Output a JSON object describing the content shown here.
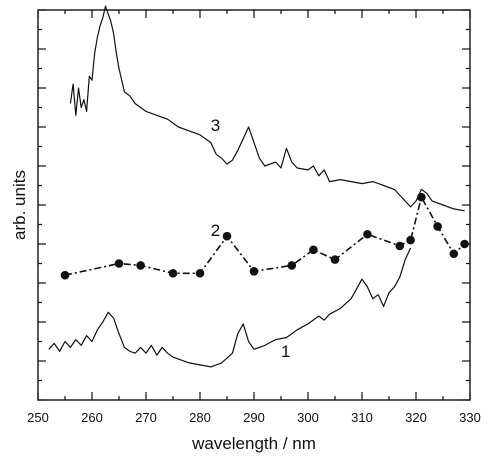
{
  "chart_data": {
    "type": "line",
    "xlabel": "wavelength / nm",
    "ylabel": "arb. units",
    "xlim": [
      250,
      330
    ],
    "ylim": [
      0,
      10
    ],
    "x_ticks": [
      250,
      260,
      270,
      280,
      290,
      300,
      310,
      320,
      330
    ],
    "y_ticks_major": [
      1,
      2,
      3,
      4,
      5,
      6,
      7,
      8,
      9
    ],
    "y_tick_labels_shown": false,
    "grid": false,
    "legend": "none",
    "series": [
      {
        "name": "1",
        "style": "line",
        "x": [
          252,
          253,
          254,
          255,
          256,
          257,
          258,
          259,
          260,
          261,
          262,
          263,
          264,
          265,
          266,
          267,
          268,
          269,
          270,
          271,
          272,
          273,
          274,
          275,
          276,
          278,
          280,
          282,
          284,
          286,
          287,
          288,
          289,
          290,
          292,
          294,
          296,
          298,
          300,
          302,
          303,
          304,
          306,
          308,
          310,
          311,
          312,
          313,
          314,
          315,
          316,
          317,
          318,
          319
        ],
        "y": [
          1.3,
          1.45,
          1.25,
          1.5,
          1.35,
          1.55,
          1.4,
          1.65,
          1.5,
          1.8,
          2.0,
          2.25,
          2.1,
          1.7,
          1.35,
          1.25,
          1.2,
          1.35,
          1.2,
          1.4,
          1.15,
          1.35,
          1.2,
          1.1,
          1.05,
          0.95,
          0.9,
          0.85,
          0.95,
          1.2,
          1.7,
          1.95,
          1.5,
          1.3,
          1.4,
          1.55,
          1.6,
          1.8,
          1.95,
          2.15,
          2.05,
          2.2,
          2.35,
          2.6,
          3.1,
          2.9,
          2.6,
          2.7,
          2.4,
          2.75,
          2.9,
          3.15,
          3.6,
          3.9
        ]
      },
      {
        "name": "2",
        "style": "dash-dot-markers",
        "x": [
          255,
          265,
          269,
          275,
          280,
          285,
          290,
          297,
          301,
          305,
          311,
          317,
          319,
          321,
          324,
          327,
          329
        ],
        "y": [
          3.2,
          3.5,
          3.45,
          3.25,
          3.25,
          4.2,
          3.3,
          3.45,
          3.85,
          3.6,
          4.25,
          3.95,
          4.1,
          5.2,
          4.45,
          3.75,
          4.0
        ]
      },
      {
        "name": "3",
        "style": "line",
        "x": [
          256,
          256.5,
          257,
          257.5,
          258,
          258.5,
          259,
          259.5,
          260,
          260.5,
          261,
          261.5,
          262,
          262.5,
          263,
          263.5,
          264,
          264.5,
          265,
          266,
          267,
          268,
          270,
          272,
          274,
          276,
          278,
          280,
          282,
          283,
          284,
          285,
          286,
          287,
          288,
          289,
          290,
          291,
          292,
          294,
          295,
          296,
          297,
          298,
          300,
          301,
          302,
          303,
          304,
          306,
          308,
          310,
          312,
          314,
          316,
          318,
          319,
          320,
          321,
          322,
          323,
          325,
          327,
          329
        ],
        "y": [
          7.6,
          8.1,
          7.3,
          8.0,
          7.5,
          7.7,
          7.4,
          8.3,
          8.2,
          8.9,
          9.3,
          9.6,
          9.8,
          10.1,
          9.9,
          9.7,
          9.4,
          8.9,
          8.5,
          7.9,
          7.8,
          7.6,
          7.4,
          7.3,
          7.2,
          7.0,
          6.9,
          6.8,
          6.6,
          6.3,
          6.2,
          6.05,
          6.15,
          6.4,
          6.7,
          7.0,
          6.6,
          6.2,
          6.0,
          6.1,
          5.95,
          6.45,
          6.1,
          5.95,
          5.9,
          6.0,
          5.75,
          5.9,
          5.6,
          5.65,
          5.6,
          5.55,
          5.6,
          5.5,
          5.4,
          5.1,
          4.95,
          5.1,
          5.4,
          5.3,
          5.1,
          5.0,
          4.9,
          4.85
        ]
      }
    ]
  }
}
